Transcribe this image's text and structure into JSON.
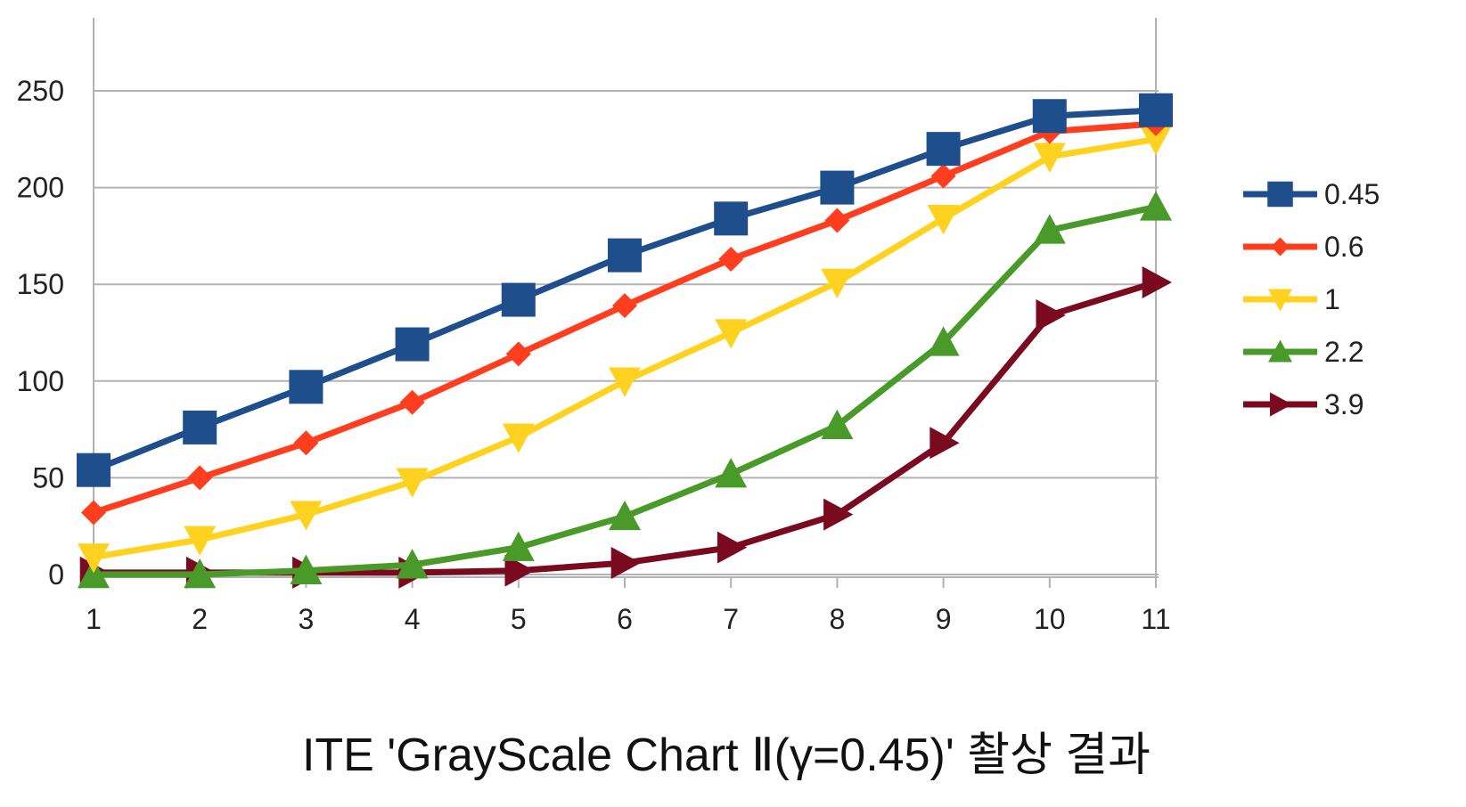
{
  "caption": "ITE 'GrayScale Chart Ⅱ(γ=0.45)' 촬상 결과",
  "chart_data": {
    "type": "line",
    "title": "",
    "xlabel": "",
    "ylabel": "",
    "x": [
      1,
      2,
      3,
      4,
      5,
      6,
      7,
      8,
      9,
      10,
      11
    ],
    "ylim": [
      0,
      250
    ],
    "yticks": [
      0,
      50,
      100,
      150,
      200,
      250
    ],
    "grid": "horizontal",
    "legend_position": "right",
    "series": [
      {
        "name": "0.45",
        "color": "#1f4e8c",
        "marker": "square",
        "values": [
          54,
          76,
          97,
          119,
          142,
          165,
          184,
          200,
          220,
          237,
          240
        ]
      },
      {
        "name": "0.6",
        "color": "#ff3d1f",
        "marker": "diamond",
        "values": [
          32,
          50,
          68,
          89,
          114,
          139,
          163,
          183,
          206,
          229,
          233
        ]
      },
      {
        "name": "1",
        "color": "#ffd21f",
        "marker": "triangle-down",
        "values": [
          9,
          18,
          31,
          48,
          71,
          100,
          125,
          151,
          184,
          216,
          225
        ]
      },
      {
        "name": "2.2",
        "color": "#4a9a2a",
        "marker": "triangle-up",
        "values": [
          0,
          0,
          2,
          5,
          14,
          30,
          52,
          77,
          120,
          178,
          190
        ]
      },
      {
        "name": "3.9",
        "color": "#7a0a1f",
        "marker": "triangle-right",
        "values": [
          1,
          1,
          1,
          1,
          2,
          6,
          14,
          31,
          68,
          134,
          151
        ]
      }
    ]
  }
}
